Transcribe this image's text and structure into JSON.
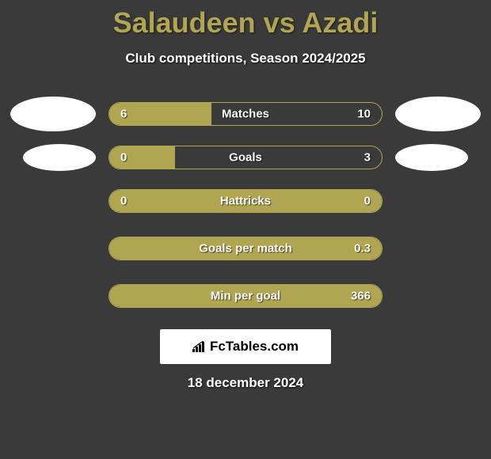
{
  "title": "Salaudeen vs Azadi",
  "subtitle": "Club competitions, Season 2024/2025",
  "date": "18 december 2024",
  "branding": "FcTables.com",
  "colors": {
    "accent": "#b0a550",
    "background": "#3a3a3a",
    "text": "#ffffff"
  },
  "stats": [
    {
      "label": "Matches",
      "left_value": "6",
      "right_value": "10",
      "left_pct": 37.5,
      "show_left_avatar": true,
      "show_right_avatar": true,
      "avatar_small": false
    },
    {
      "label": "Goals",
      "left_value": "0",
      "right_value": "3",
      "left_pct": 24,
      "show_left_avatar": true,
      "show_right_avatar": true,
      "avatar_small": true
    },
    {
      "label": "Hattricks",
      "left_value": "0",
      "right_value": "0",
      "left_pct": 100,
      "show_left_avatar": false,
      "show_right_avatar": false,
      "avatar_small": false
    },
    {
      "label": "Goals per match",
      "left_value": "",
      "right_value": "0.3",
      "left_pct": 100,
      "show_left_avatar": false,
      "show_right_avatar": false,
      "avatar_small": false
    },
    {
      "label": "Min per goal",
      "left_value": "",
      "right_value": "366",
      "left_pct": 100,
      "show_left_avatar": false,
      "show_right_avatar": false,
      "avatar_small": false
    }
  ]
}
